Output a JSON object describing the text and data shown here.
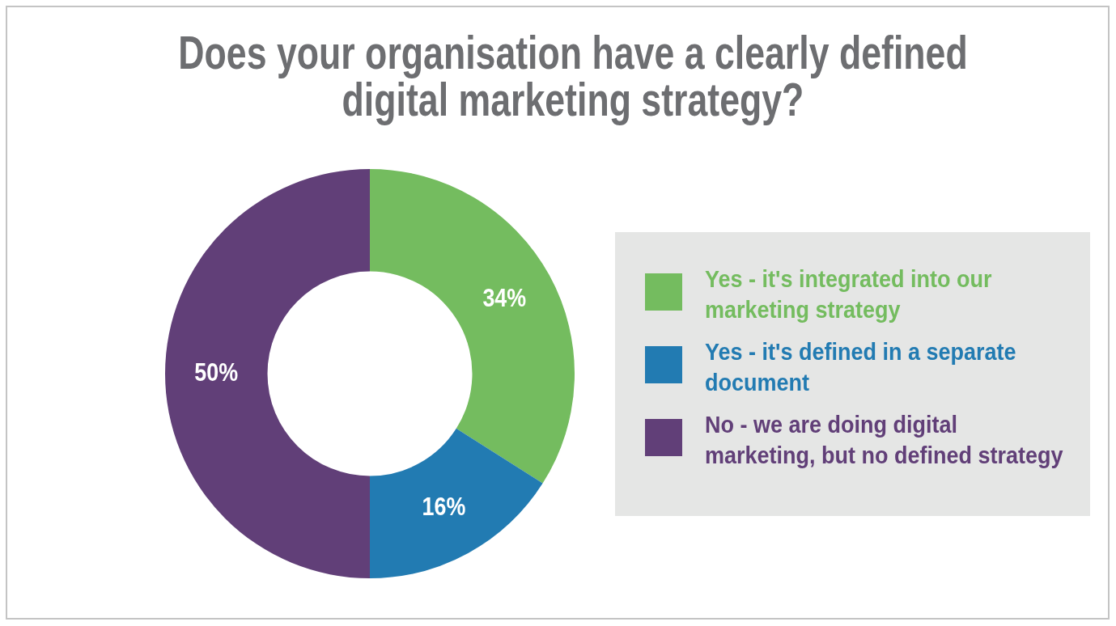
{
  "chart_data": {
    "type": "donut",
    "title": "Does your organisation have a clearly defined digital marketing strategy?",
    "categories": [
      "Yes - it's integrated into our marketing strategy",
      "Yes - it's defined in a separate document",
      "No - we are doing digital marketing, but no defined strategy"
    ],
    "values": [
      34,
      16,
      50
    ],
    "colors": [
      "#74bc5f",
      "#227bb2",
      "#613f78"
    ],
    "value_labels": [
      "34%",
      "16%",
      "50%"
    ],
    "legend": "right"
  }
}
